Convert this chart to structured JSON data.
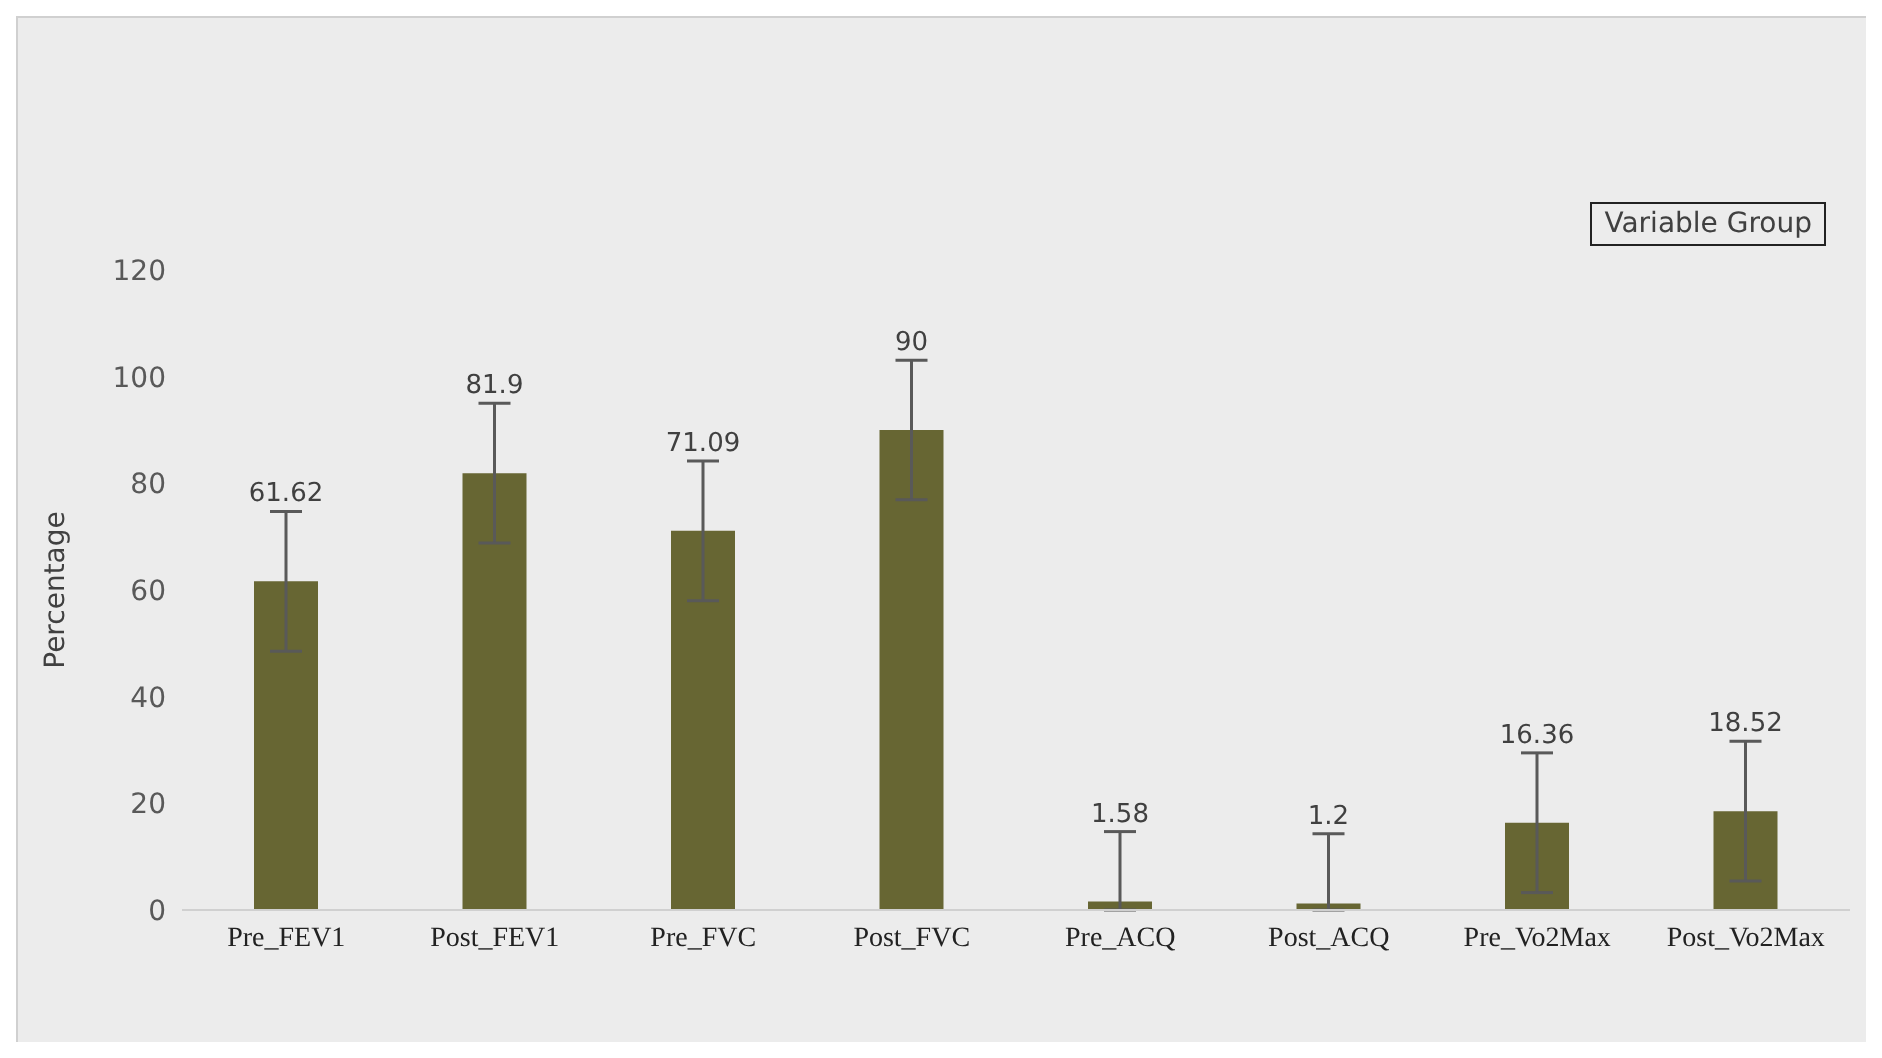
{
  "chart_data": {
    "type": "bar",
    "legend_title": "Variable Group",
    "ylabel": "Percentage",
    "categories": [
      "Pre_FEV1",
      "Post_FEV1",
      "Pre_FVC",
      "Post_FVC",
      "Pre_ACQ",
      "Post_ACQ",
      "Pre_Vo2Max",
      "Post_Vo2Max"
    ],
    "series": [
      {
        "color": "#676633",
        "values": [
          61.62,
          81.9,
          71.09,
          90,
          1.58,
          1.2,
          16.36,
          18.52
        ],
        "errors": [
          13.1,
          13.1,
          13.1,
          13.1,
          [
            0,
            14.7
          ],
          [
            0,
            14.3
          ],
          13.1,
          13.1
        ]
      }
    ],
    "ylim": [
      0,
      120
    ],
    "yticks": [
      0,
      20,
      40,
      60,
      80,
      100,
      120
    ],
    "data_labels": true,
    "grid": false
  }
}
